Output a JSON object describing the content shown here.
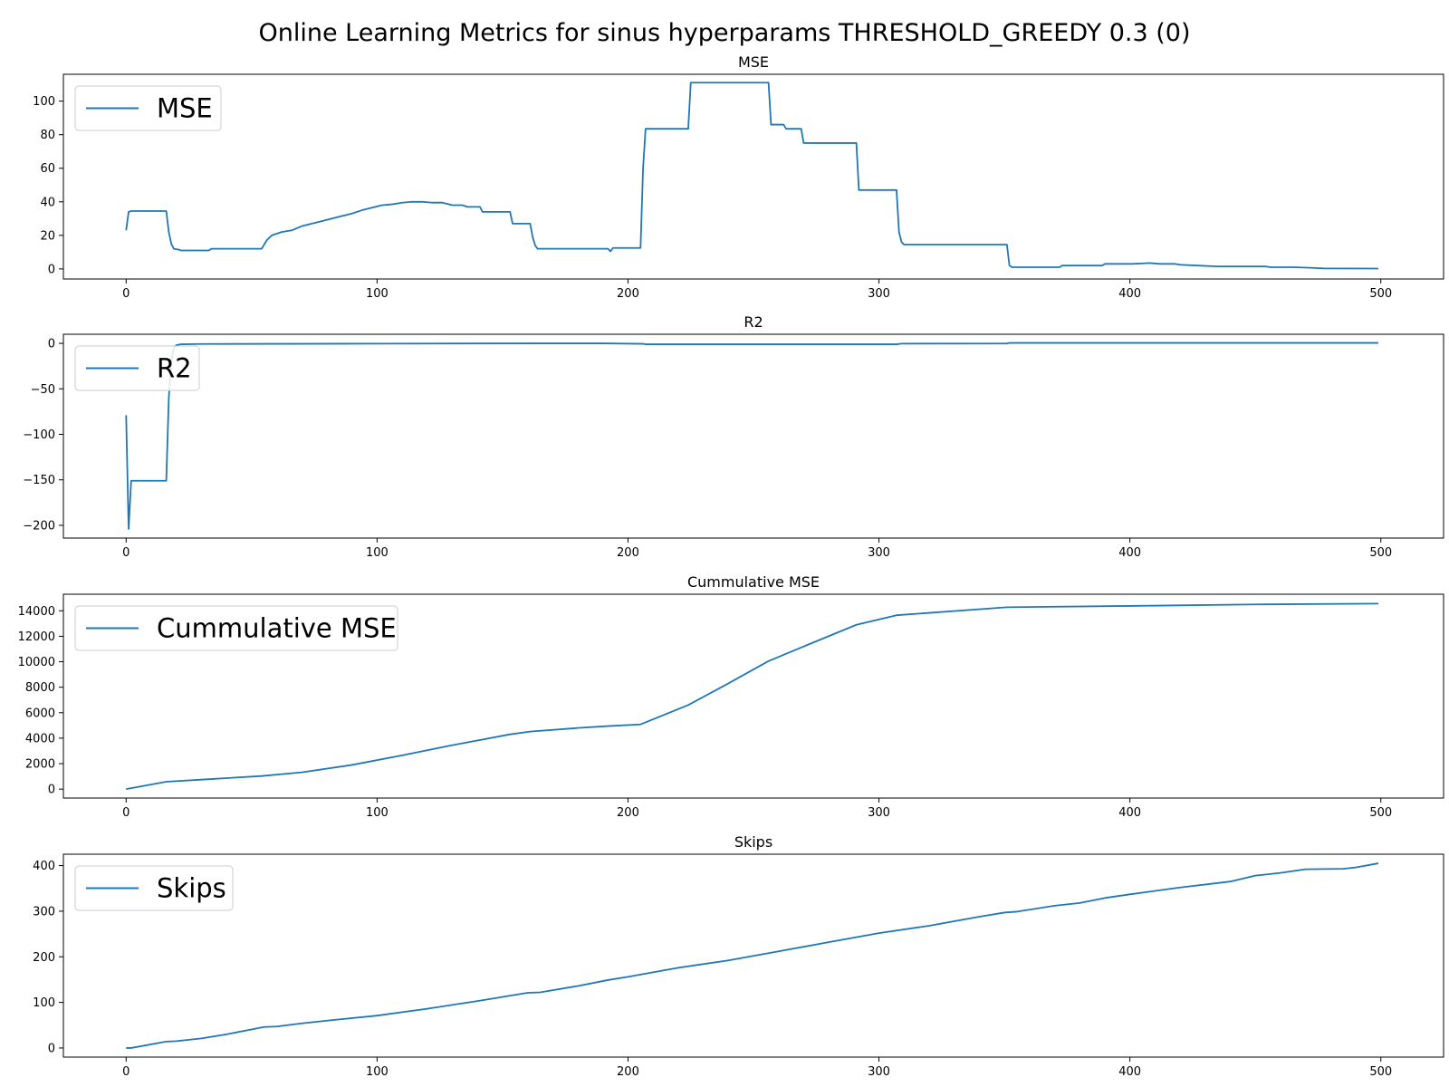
{
  "figure": {
    "title": "Online Learning Metrics for sinus hyperparams THRESHOLD_GREEDY 0.3 (0)",
    "line_color": "#1f77b4"
  },
  "chart_data": [
    {
      "type": "line",
      "title": "MSE",
      "legend_label": "MSE",
      "legend": "upper-left",
      "grid": false,
      "xlim": [
        -25,
        525
      ],
      "ylim": [
        -6,
        116
      ],
      "xticks": [
        0,
        100,
        200,
        300,
        400,
        500
      ],
      "yticks": [
        0,
        20,
        40,
        60,
        80,
        100
      ],
      "points": [
        [
          0,
          23
        ],
        [
          1,
          34
        ],
        [
          2,
          34.5
        ],
        [
          16,
          34.5
        ],
        [
          17,
          22
        ],
        [
          18,
          15
        ],
        [
          19,
          12
        ],
        [
          21,
          11.5
        ],
        [
          22,
          11
        ],
        [
          25,
          11
        ],
        [
          33,
          11
        ],
        [
          34,
          12
        ],
        [
          54,
          12
        ],
        [
          56,
          17
        ],
        [
          58,
          20
        ],
        [
          60,
          21
        ],
        [
          62,
          22
        ],
        [
          66,
          23
        ],
        [
          70,
          25.5
        ],
        [
          74,
          27
        ],
        [
          78,
          28.5
        ],
        [
          82,
          30
        ],
        [
          86,
          31.5
        ],
        [
          90,
          33
        ],
        [
          94,
          35
        ],
        [
          98,
          36.5
        ],
        [
          102,
          38
        ],
        [
          106,
          38.5
        ],
        [
          110,
          39.5
        ],
        [
          114,
          40
        ],
        [
          118,
          40
        ],
        [
          122,
          39.5
        ],
        [
          126,
          39.5
        ],
        [
          130,
          38
        ],
        [
          134,
          38
        ],
        [
          136,
          37
        ],
        [
          141,
          37
        ],
        [
          142,
          34
        ],
        [
          153,
          34
        ],
        [
          154,
          27
        ],
        [
          161,
          27
        ],
        [
          162,
          19
        ],
        [
          163,
          14
        ],
        [
          164,
          12
        ],
        [
          192,
          12
        ],
        [
          193,
          10.5
        ],
        [
          194,
          12.5
        ],
        [
          205,
          12.5
        ],
        [
          206,
          60
        ],
        [
          207,
          83.5
        ],
        [
          224,
          83.5
        ],
        [
          225,
          111
        ],
        [
          256,
          111
        ],
        [
          257,
          86
        ],
        [
          262,
          86
        ],
        [
          263,
          83.5
        ],
        [
          269,
          83.5
        ],
        [
          270,
          75
        ],
        [
          291,
          75
        ],
        [
          292,
          47
        ],
        [
          307,
          47
        ],
        [
          308,
          22
        ],
        [
          309,
          16
        ],
        [
          310,
          14.5
        ],
        [
          351,
          14.5
        ],
        [
          352,
          2
        ],
        [
          353,
          1
        ],
        [
          372,
          1
        ],
        [
          373,
          2
        ],
        [
          389,
          2
        ],
        [
          390,
          3
        ],
        [
          401,
          3
        ],
        [
          408,
          3.5
        ],
        [
          412,
          3
        ],
        [
          418,
          3
        ],
        [
          420,
          2.5
        ],
        [
          427,
          2
        ],
        [
          435,
          1.5
        ],
        [
          454,
          1.5
        ],
        [
          456,
          1
        ],
        [
          465,
          1
        ],
        [
          472,
          0.7
        ],
        [
          477,
          0.3
        ],
        [
          499,
          0.2
        ]
      ]
    },
    {
      "type": "line",
      "title": "R2",
      "legend_label": "R2",
      "legend": "upper-left",
      "grid": false,
      "xlim": [
        -25,
        525
      ],
      "ylim": [
        -214,
        10
      ],
      "xticks": [
        0,
        100,
        200,
        300,
        400,
        500
      ],
      "yticks": [
        -200,
        -150,
        -100,
        -50,
        0
      ],
      "points": [
        [
          0,
          -79
        ],
        [
          1,
          -204
        ],
        [
          2,
          -151
        ],
        [
          16,
          -151
        ],
        [
          17,
          -60
        ],
        [
          18,
          -20
        ],
        [
          19,
          -5
        ],
        [
          20,
          -2
        ],
        [
          22,
          -1
        ],
        [
          30,
          -0.7
        ],
        [
          100,
          -0.3
        ],
        [
          165,
          0
        ],
        [
          190,
          0
        ],
        [
          206,
          -0.5
        ],
        [
          207,
          -1
        ],
        [
          307,
          -1
        ],
        [
          309,
          -0.3
        ],
        [
          351,
          -0.2
        ],
        [
          352,
          0.5
        ],
        [
          499,
          0.5
        ]
      ]
    },
    {
      "type": "line",
      "title": "Cummulative MSE",
      "legend_label": "Cummulative MSE",
      "legend": "upper-left",
      "grid": false,
      "xlim": [
        -25,
        525
      ],
      "ylim": [
        -700,
        15300
      ],
      "xticks": [
        0,
        100,
        200,
        300,
        400,
        500
      ],
      "yticks": [
        0,
        2000,
        4000,
        6000,
        8000,
        10000,
        12000,
        14000
      ],
      "points": [
        [
          0,
          0
        ],
        [
          16,
          580
        ],
        [
          33,
          780
        ],
        [
          54,
          1030
        ],
        [
          70,
          1320
        ],
        [
          90,
          1900
        ],
        [
          110,
          2650
        ],
        [
          130,
          3450
        ],
        [
          145,
          4000
        ],
        [
          153,
          4300
        ],
        [
          161,
          4520
        ],
        [
          180,
          4800
        ],
        [
          192,
          4950
        ],
        [
          205,
          5080
        ],
        [
          224,
          6600
        ],
        [
          240,
          8300
        ],
        [
          256,
          10050
        ],
        [
          270,
          11200
        ],
        [
          291,
          12900
        ],
        [
          307,
          13650
        ],
        [
          351,
          14280
        ],
        [
          400,
          14380
        ],
        [
          450,
          14500
        ],
        [
          499,
          14560
        ]
      ]
    },
    {
      "type": "line",
      "title": "Skips",
      "legend_label": "Skips",
      "legend": "upper-left",
      "grid": false,
      "xlim": [
        -25,
        525
      ],
      "ylim": [
        -20,
        425
      ],
      "xticks": [
        0,
        100,
        200,
        300,
        400,
        500
      ],
      "yticks": [
        0,
        100,
        200,
        300,
        400
      ],
      "points": [
        [
          0,
          0
        ],
        [
          2,
          0
        ],
        [
          16,
          14
        ],
        [
          20,
          15
        ],
        [
          30,
          21
        ],
        [
          40,
          30
        ],
        [
          55,
          46
        ],
        [
          60,
          47
        ],
        [
          70,
          54
        ],
        [
          80,
          60
        ],
        [
          100,
          71
        ],
        [
          120,
          86
        ],
        [
          140,
          103
        ],
        [
          160,
          121
        ],
        [
          165,
          122
        ],
        [
          180,
          136
        ],
        [
          192,
          149
        ],
        [
          200,
          156
        ],
        [
          220,
          176
        ],
        [
          240,
          192
        ],
        [
          260,
          212
        ],
        [
          280,
          232
        ],
        [
          300,
          252
        ],
        [
          320,
          268
        ],
        [
          340,
          288
        ],
        [
          350,
          297
        ],
        [
          355,
          299
        ],
        [
          370,
          312
        ],
        [
          380,
          318
        ],
        [
          390,
          329
        ],
        [
          400,
          337
        ],
        [
          420,
          352
        ],
        [
          440,
          365
        ],
        [
          450,
          378
        ],
        [
          460,
          384
        ],
        [
          470,
          392
        ],
        [
          485,
          393
        ],
        [
          490,
          396
        ],
        [
          499,
          405
        ]
      ]
    }
  ]
}
